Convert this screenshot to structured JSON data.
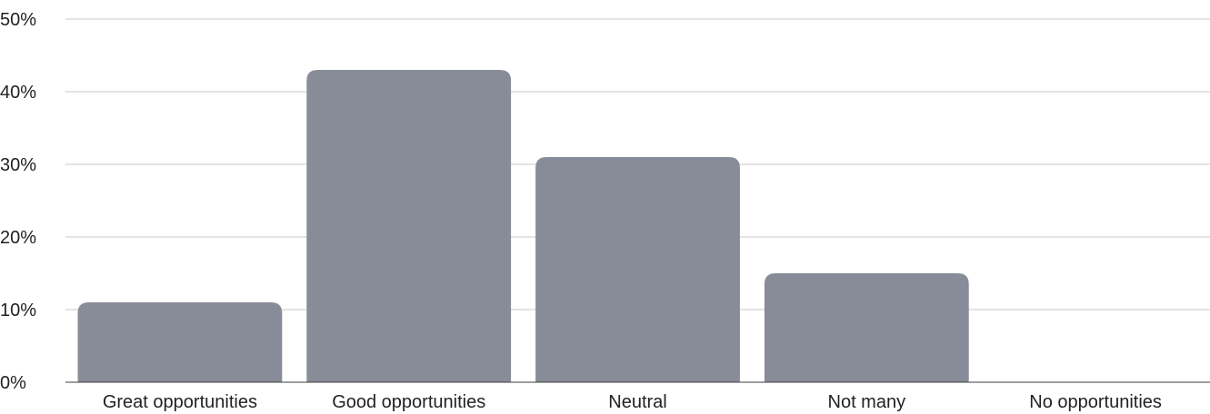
{
  "chart_data": {
    "type": "bar",
    "title": "",
    "xlabel": "",
    "ylabel": "",
    "categories": [
      "Great opportunities",
      "Good opportunities",
      "Neutral",
      "Not many",
      "No opportunities"
    ],
    "values": [
      11,
      43,
      31,
      15,
      0
    ],
    "ylim": [
      0,
      50
    ],
    "y_ticks": [
      "0%",
      "10%",
      "20%",
      "30%",
      "40%",
      "50%"
    ],
    "y_tick_values": [
      0,
      10,
      20,
      30,
      40,
      50
    ],
    "grid": true,
    "legend": "none",
    "bar_color": "#878c98"
  }
}
